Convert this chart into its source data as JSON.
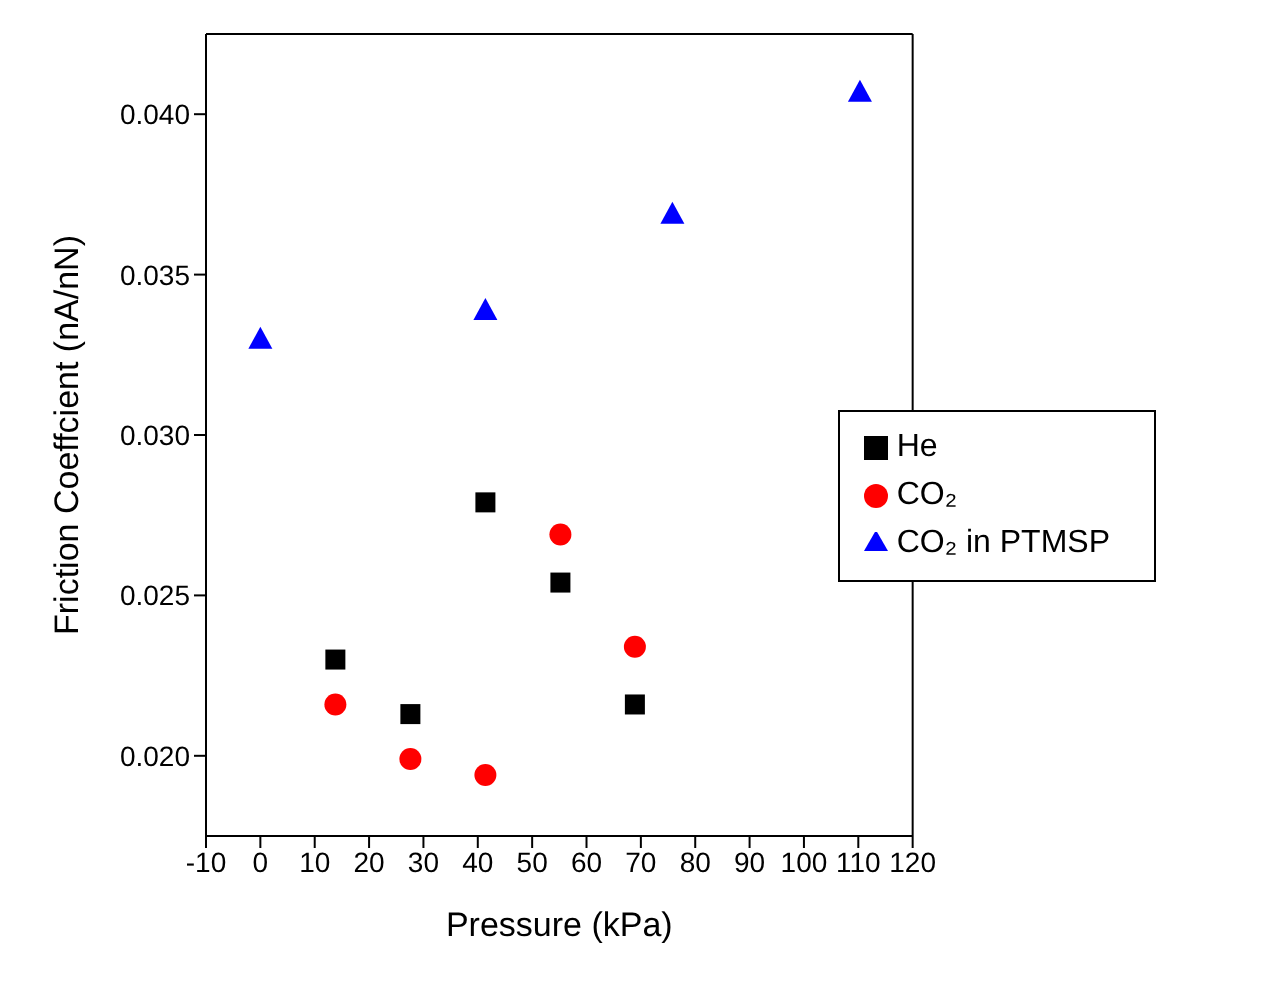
{
  "chart_data": {
    "type": "scatter",
    "xlabel": "Pressure (kPa)",
    "ylabel": "Friction Coeffcient (nA/nN)",
    "xlim": [
      -10,
      120
    ],
    "xticks": [
      -10,
      0,
      10,
      20,
      30,
      40,
      50,
      60,
      70,
      80,
      90,
      100,
      110,
      120
    ],
    "ylim": [
      0.0175,
      0.0425
    ],
    "yticks": [
      {
        "value": 0.02,
        "label": "0.020"
      },
      {
        "value": 0.025,
        "label": "0.025"
      },
      {
        "value": 0.03,
        "label": "0.030"
      },
      {
        "value": 0.035,
        "label": "0.035"
      },
      {
        "value": 0.04,
        "label": "0.040"
      }
    ],
    "legend": "right",
    "grid": false,
    "series": [
      {
        "name": "He",
        "color": "#000000",
        "marker": "square",
        "x": [
          13.8,
          27.6,
          41.4,
          55.2,
          68.9
        ],
        "values": [
          0.023,
          0.0213,
          0.0279,
          0.0254,
          0.0216
        ]
      },
      {
        "name": "CO₂",
        "color": "#ff0000",
        "marker": "circle",
        "x": [
          13.8,
          27.6,
          41.4,
          55.2,
          68.9
        ],
        "values": [
          0.0216,
          0.0199,
          0.0194,
          0.0269,
          0.0234
        ]
      },
      {
        "name": "CO₂ in PTMSP",
        "color": "#0000ff",
        "marker": "triangle",
        "x": [
          0,
          41.4,
          75.8,
          110.3
        ],
        "values": [
          0.033,
          0.0339,
          0.0369,
          0.0407
        ]
      }
    ]
  }
}
